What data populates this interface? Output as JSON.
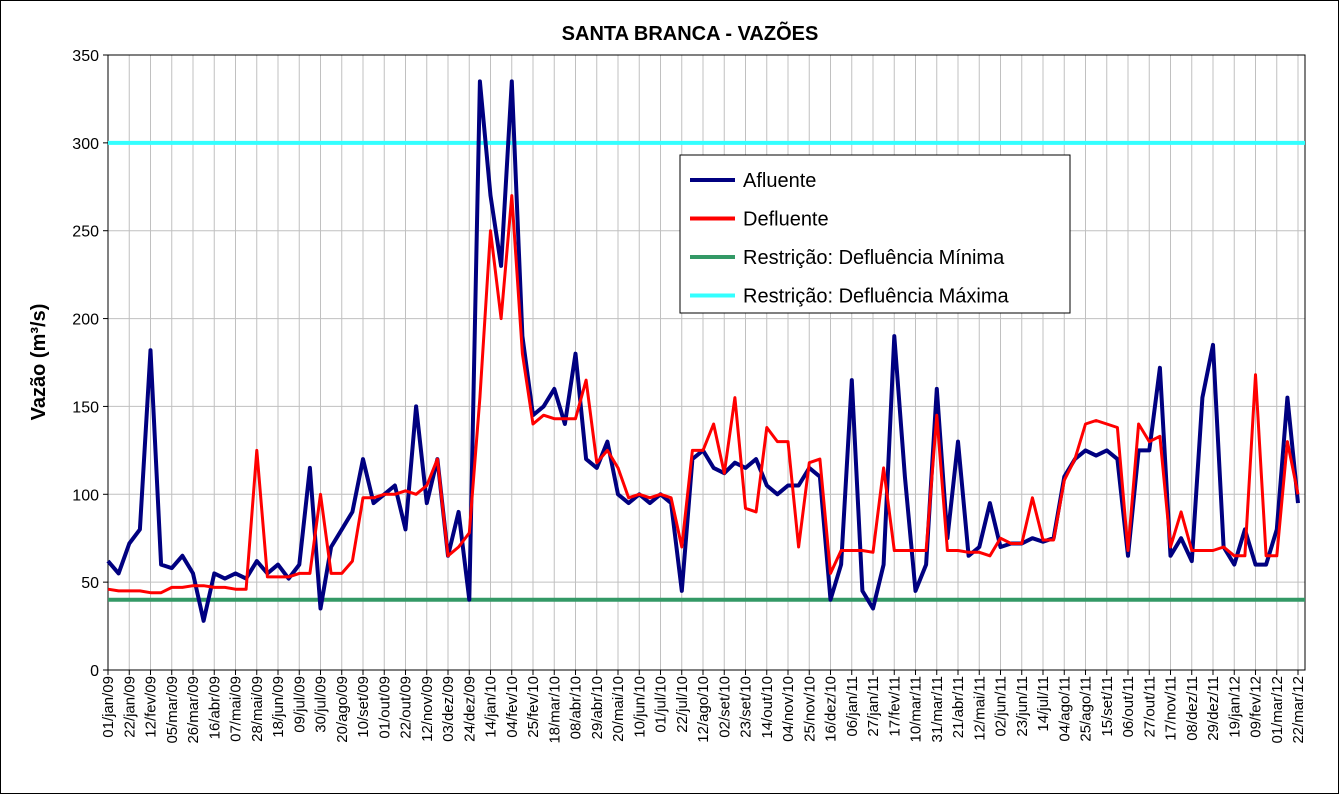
{
  "chart_data": {
    "type": "line",
    "title": "SANTA BRANCA - VAZÕES",
    "y_label": "Vazão (m³/s)",
    "ylim": [
      0,
      350
    ],
    "yticks": [
      0,
      50,
      100,
      150,
      200,
      250,
      300,
      350
    ],
    "grid": true,
    "legend": "upper right",
    "categories": [
      "01/jan/09",
      null,
      "22/jan/09",
      null,
      "12/fev/09",
      null,
      "05/mar/09",
      null,
      "26/mar/09",
      null,
      "16/abr/09",
      null,
      "07/mai/09",
      null,
      "28/mai/09",
      null,
      "18/jun/09",
      null,
      "09/jul/09",
      null,
      "30/jul/09",
      null,
      "20/ago/09",
      null,
      "10/set/09",
      null,
      "01/out/09",
      null,
      "22/out/09",
      null,
      "12/nov/09",
      null,
      "03/dez/09",
      null,
      "24/dez/09",
      null,
      "14/jan/10",
      null,
      "04/fev/10",
      null,
      "25/fev/10",
      null,
      "18/mar/10",
      null,
      "08/abr/10",
      null,
      "29/abr/10",
      null,
      "20/mai/10",
      null,
      "10/jun/10",
      null,
      "01/jul/10",
      null,
      "22/jul/10",
      null,
      "12/ago/10",
      null,
      "02/set/10",
      null,
      "23/set/10",
      null,
      "14/out/10",
      null,
      "04/nov/10",
      null,
      "25/nov/10",
      null,
      "16/dez/10",
      null,
      "06/jan/11",
      null,
      "27/jan/11",
      null,
      "17/fev/11",
      null,
      "10/mar/11",
      null,
      "31/mar/11",
      null,
      "21/abr/11",
      null,
      "12/mai/11",
      null,
      "02/jun/11",
      null,
      "23/jun/11",
      null,
      "14/jul/11",
      null,
      "04/ago/11",
      null,
      "25/ago/11",
      null,
      "15/set/11",
      null,
      "06/out/11",
      null,
      "27/out/11",
      null,
      "17/nov/11",
      null,
      "08/dez/11",
      null,
      "29/dez/11",
      null,
      "19/jan/12",
      null,
      "09/fev/12",
      null,
      "01/mar/12",
      null,
      "22/mar/12"
    ],
    "series": [
      {
        "name": "Afluente",
        "color": "#000080",
        "values": [
          62,
          55,
          72,
          80,
          182,
          60,
          58,
          65,
          55,
          28,
          55,
          52,
          55,
          52,
          62,
          55,
          60,
          52,
          60,
          115,
          35,
          70,
          80,
          90,
          120,
          95,
          100,
          105,
          80,
          150,
          95,
          120,
          65,
          90,
          40,
          335,
          270,
          230,
          335,
          190,
          145,
          150,
          160,
          140,
          180,
          120,
          115,
          130,
          100,
          95,
          100,
          95,
          100,
          95,
          45,
          120,
          125,
          115,
          112,
          118,
          115,
          120,
          105,
          100,
          105,
          105,
          115,
          110,
          40,
          60,
          165,
          45,
          35,
          60,
          190,
          110,
          45,
          60,
          160,
          75,
          130,
          65,
          70,
          95,
          70,
          72,
          72,
          75,
          73,
          75,
          110,
          120,
          125,
          122,
          125,
          120,
          65,
          125,
          125,
          172,
          65,
          75,
          62,
          155,
          185,
          70,
          60,
          80,
          60,
          60,
          80,
          155,
          95
        ]
      },
      {
        "name": "Defluente",
        "color": "#ff0000",
        "values": [
          46,
          45,
          45,
          45,
          44,
          44,
          47,
          47,
          48,
          48,
          47,
          47,
          46,
          46,
          125,
          53,
          53,
          53,
          55,
          55,
          100,
          55,
          55,
          62,
          98,
          98,
          100,
          100,
          102,
          100,
          105,
          120,
          65,
          70,
          78,
          155,
          250,
          200,
          270,
          180,
          140,
          145,
          143,
          143,
          143,
          165,
          118,
          125,
          115,
          98,
          100,
          98,
          100,
          98,
          70,
          125,
          125,
          140,
          112,
          155,
          92,
          90,
          138,
          130,
          130,
          70,
          118,
          120,
          55,
          68,
          68,
          68,
          67,
          115,
          68,
          68,
          68,
          68,
          145,
          68,
          68,
          67,
          67,
          65,
          75,
          72,
          72,
          98,
          74,
          74,
          108,
          120,
          140,
          142,
          140,
          138,
          68,
          140,
          130,
          133,
          70,
          90,
          68,
          68,
          68,
          70,
          65,
          65,
          168,
          65,
          65,
          130,
          100
        ]
      },
      {
        "name": "Restrição: Defluência Mínima",
        "color": "#339966",
        "value": 40
      },
      {
        "name": "Restrição: Defluência Máxima",
        "color": "#33ffff",
        "value": 300
      }
    ]
  }
}
